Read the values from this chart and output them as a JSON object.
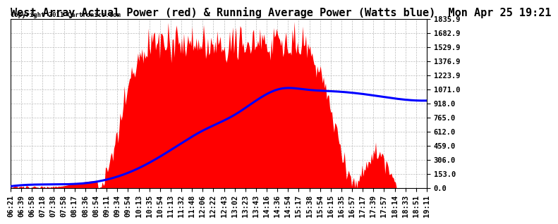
{
  "title": "West Array Actual Power (red) & Running Average Power (Watts blue)  Mon Apr 25 19:21",
  "copyright": "Copyright 2011 Cartronics.com",
  "yticks": [
    0.0,
    153.0,
    306.0,
    459.0,
    612.0,
    765.0,
    918.0,
    1071.0,
    1223.9,
    1376.9,
    1529.9,
    1682.9,
    1835.9
  ],
  "ylim": [
    0,
    1835.9
  ],
  "xtick_labels": [
    "06:21",
    "06:39",
    "06:58",
    "07:18",
    "07:38",
    "07:58",
    "08:17",
    "08:36",
    "08:54",
    "09:11",
    "09:34",
    "09:54",
    "10:13",
    "10:35",
    "10:54",
    "11:13",
    "11:32",
    "11:48",
    "12:06",
    "12:22",
    "12:43",
    "13:02",
    "13:23",
    "13:43",
    "14:16",
    "14:36",
    "14:54",
    "15:17",
    "15:38",
    "15:54",
    "16:15",
    "16:35",
    "16:57",
    "17:17",
    "17:39",
    "17:57",
    "18:14",
    "18:33",
    "18:51",
    "19:11"
  ],
  "background_color": "#ffffff",
  "grid_color": "#bbbbbb",
  "fill_color": "#ff0000",
  "line_color": "#0000ff",
  "title_fontsize": 11,
  "tick_fontsize": 7.5
}
